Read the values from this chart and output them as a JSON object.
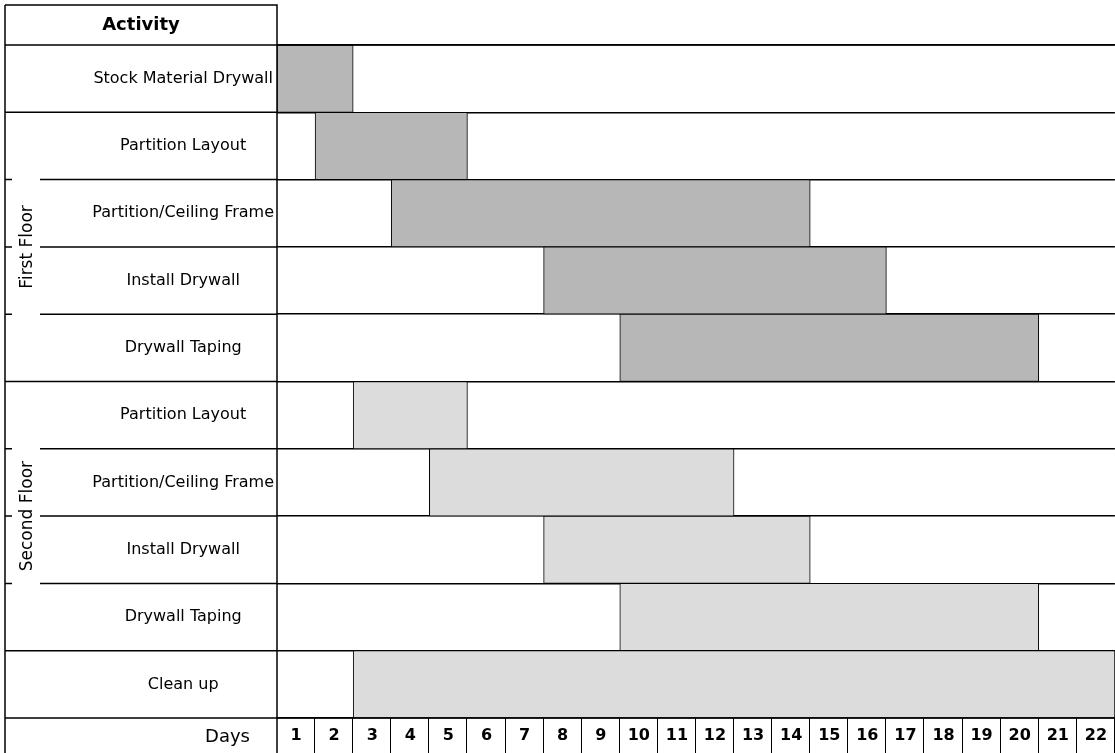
{
  "chart_data": {
    "type": "bar",
    "orientation": "horizontal",
    "ylabel": "Activity",
    "xlabel": "Days",
    "categories": [
      "Stock Material Drywall",
      "Partition Layout",
      "Partition/Ceiling Frame",
      "Install Drywall",
      "Drywall Taping",
      "Partition Layout",
      "Partition/Ceiling Frame",
      "Install Drywall",
      "Drywall Taping",
      "Clean up"
    ],
    "base": [
      0,
      1,
      3,
      7,
      9,
      2,
      4,
      7,
      9,
      2
    ],
    "values": [
      2,
      4,
      11,
      9,
      11,
      3,
      8,
      7,
      11,
      20
    ],
    "colors": [
      "#b7b7b7",
      "#b7b7b7",
      "#b7b7b7",
      "#b7b7b7",
      "#b7b7b7",
      "#dcdcdc",
      "#dcdcdc",
      "#dcdcdc",
      "#dcdcdc",
      "#dcdcdc"
    ],
    "xlim": [
      0,
      22
    ],
    "xticks": [
      {
        "value": 0.5,
        "label": "1"
      },
      {
        "value": 1.5,
        "label": "2"
      },
      {
        "value": 2.5,
        "label": "3"
      },
      {
        "value": 3.5,
        "label": "4"
      },
      {
        "value": 4.5,
        "label": "5"
      },
      {
        "value": 5.5,
        "label": "6"
      },
      {
        "value": 6.5,
        "label": "7"
      },
      {
        "value": 7.5,
        "label": "8"
      },
      {
        "value": 8.5,
        "label": "9"
      },
      {
        "value": 9.5,
        "label": "10"
      },
      {
        "value": 10.5,
        "label": "11"
      },
      {
        "value": 11.5,
        "label": "12"
      },
      {
        "value": 12.5,
        "label": "13"
      },
      {
        "value": 13.5,
        "label": "14"
      },
      {
        "value": 14.5,
        "label": "15"
      },
      {
        "value": 15.5,
        "label": "16"
      },
      {
        "value": 16.5,
        "label": "17"
      },
      {
        "value": 17.5,
        "label": "18"
      },
      {
        "value": 18.5,
        "label": "19"
      },
      {
        "value": 19.5,
        "label": "20"
      },
      {
        "value": 20.5,
        "label": "21"
      },
      {
        "value": 21.5,
        "label": "22"
      }
    ],
    "grid": "y",
    "annotations": [
      "First Floor",
      "Second Floor"
    ]
  }
}
